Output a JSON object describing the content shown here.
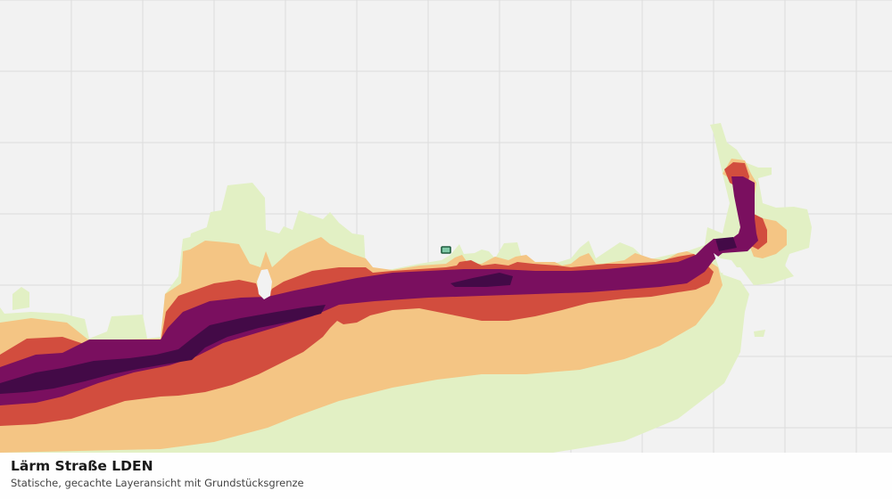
{
  "caption": {
    "title": "Lärm Straße LDEN",
    "subtitle": "Statische, gecachte Layeransicht mit Grundstücksgrenze"
  },
  "colors": {
    "background": "#f2f2f2",
    "grid": "#dcdcdc",
    "level_lowest": "#e2f0c4",
    "level_low": "#f4c584",
    "level_mid": "#d24d3e",
    "level_high": "#7a0f5f",
    "level_highest": "#430a47",
    "parcel_fill": "#7fc9a7",
    "parcel_stroke": "#1f5c3f"
  }
}
